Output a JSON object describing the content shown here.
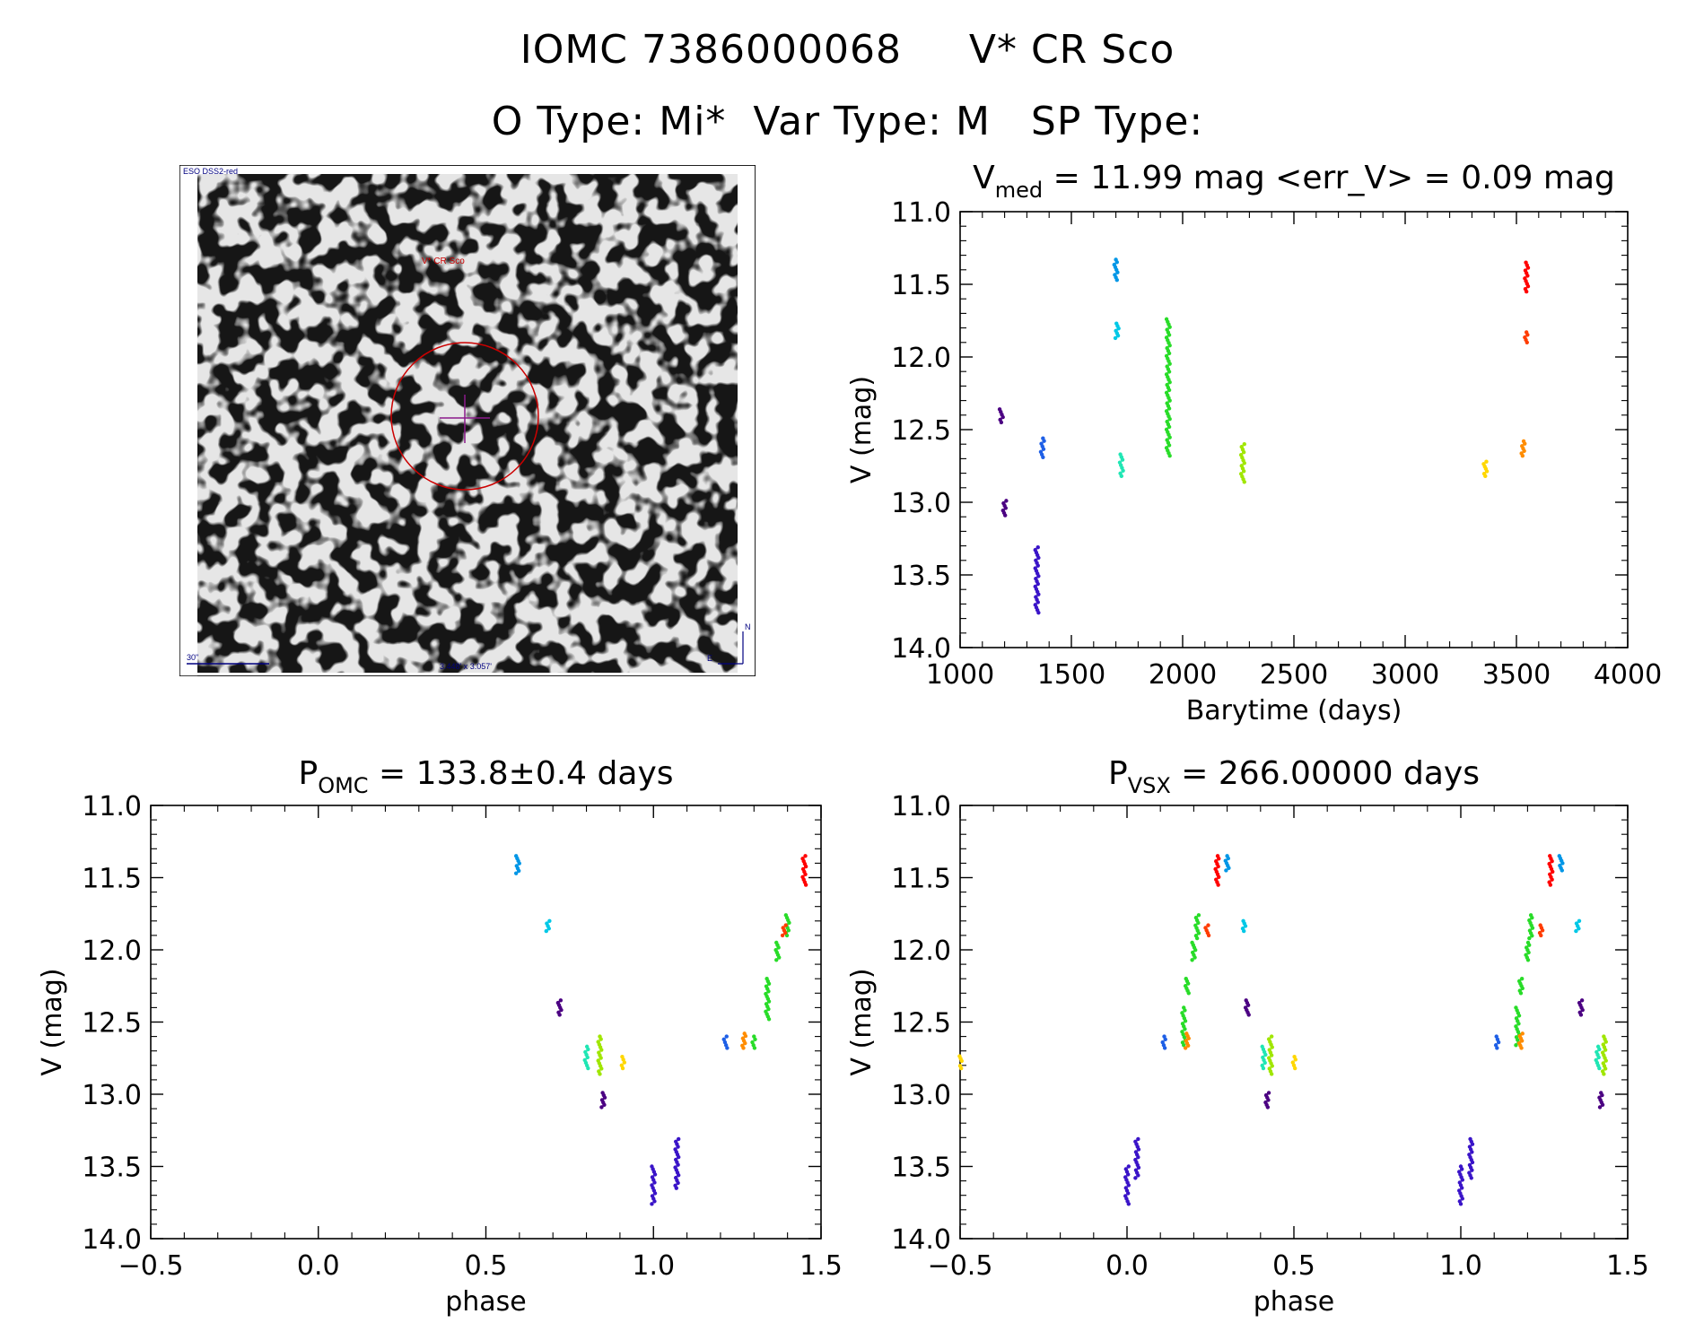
{
  "figure": {
    "title_line1": "IOMC 7386000068     V* CR Sco",
    "title_line2": "O Type: Mi*  Var Type: M   SP Type:"
  },
  "finder_chart": {
    "survey_label": "ESO DSS2-red",
    "object_label": "V* CR Sco",
    "scale_label": "30\"",
    "fov_label": "3.448' x 3.057'",
    "north_label": "N",
    "east_label": "E"
  },
  "colors": {
    "axis": "#000000",
    "circle": "#cc0000",
    "crosshair": "#8b1a8b",
    "annotation": "#000080"
  },
  "chart_data": [
    {
      "id": "lightcurve",
      "type": "scatter",
      "title_main": "V",
      "title_sub": "med",
      "title_rest": " = 11.99 mag <err_V> = 0.09 mag",
      "xlabel": "Barytime (days)",
      "ylabel": "V (mag)",
      "xlim": [
        1000,
        4000
      ],
      "ylim": [
        14.0,
        11.0
      ],
      "y_inverted": true,
      "xticks": [
        1000,
        1500,
        2000,
        2500,
        3000,
        3500,
        4000
      ],
      "yticks": [
        11.0,
        11.5,
        12.0,
        12.5,
        13.0,
        13.5,
        14.0
      ],
      "groups": [
        {
          "color": "#4b0082",
          "x": 1185,
          "y": [
            12.36,
            12.45
          ]
        },
        {
          "color": "#4b0082",
          "x": 1200,
          "y": [
            12.99,
            13.09
          ]
        },
        {
          "color": "#3a14c8",
          "x": 1345,
          "y": [
            13.31,
            13.76
          ]
        },
        {
          "color": "#1e5fe6",
          "x": 1370,
          "y": [
            12.56,
            12.69
          ]
        },
        {
          "color": "#0096e6",
          "x": 1700,
          "y": [
            11.33,
            11.47
          ]
        },
        {
          "color": "#00c8e6",
          "x": 1705,
          "y": [
            11.77,
            11.87
          ]
        },
        {
          "color": "#20e6b4",
          "x": 1725,
          "y": [
            12.67,
            12.82
          ]
        },
        {
          "color": "#28dc28",
          "x": 1935,
          "y": [
            11.74,
            12.68
          ]
        },
        {
          "color": "#a0e600",
          "x": 2270,
          "y": [
            12.6,
            12.86
          ]
        },
        {
          "color": "#ffd700",
          "x": 3360,
          "y": [
            12.72,
            12.82
          ]
        },
        {
          "color": "#ff8c00",
          "x": 3530,
          "y": [
            12.58,
            12.68
          ]
        },
        {
          "color": "#ff3c00",
          "x": 3545,
          "y": [
            11.83,
            11.9
          ]
        },
        {
          "color": "#ff0000",
          "x": 3545,
          "y": [
            11.35,
            11.55
          ]
        }
      ]
    },
    {
      "id": "phase_omc",
      "type": "scatter",
      "title_main": "P",
      "title_sub": "OMC",
      "title_rest": " = 133.8±0.4 days",
      "xlabel": "phase",
      "ylabel": "V (mag)",
      "xlim": [
        -0.5,
        1.5
      ],
      "ylim": [
        14.0,
        11.0
      ],
      "y_inverted": true,
      "xticks": [
        -0.5,
        0.0,
        0.5,
        1.0,
        1.5
      ],
      "xtick_labels": [
        "−0.5",
        "0.0",
        "0.5",
        "1.0",
        "1.5"
      ],
      "yticks": [
        11.0,
        11.5,
        12.0,
        12.5,
        13.0,
        13.5,
        14.0
      ],
      "groups": [
        {
          "color": "#0096e6",
          "x": 0.595,
          "y": [
            11.35,
            11.47
          ]
        },
        {
          "color": "#00c8e6",
          "x": 0.685,
          "y": [
            11.8,
            11.87
          ]
        },
        {
          "color": "#4b0082",
          "x": 0.72,
          "y": [
            12.35,
            12.45
          ]
        },
        {
          "color": "#20e6b4",
          "x": 0.8,
          "y": [
            12.67,
            12.82
          ]
        },
        {
          "color": "#a0e600",
          "x": 0.84,
          "y": [
            12.6,
            12.86
          ]
        },
        {
          "color": "#4b0082",
          "x": 0.85,
          "y": [
            12.99,
            13.09
          ]
        },
        {
          "color": "#ffd700",
          "x": 0.91,
          "y": [
            12.74,
            12.82
          ]
        },
        {
          "color": "#3a14c8",
          "x": 1.0,
          "y": [
            13.5,
            13.76
          ]
        },
        {
          "color": "#3a14c8",
          "x": 1.07,
          "y": [
            13.31,
            13.65
          ]
        },
        {
          "color": "#1e5fe6",
          "x": 1.215,
          "y": [
            12.6,
            12.68
          ]
        },
        {
          "color": "#ff8c00",
          "x": 1.27,
          "y": [
            12.58,
            12.68
          ]
        },
        {
          "color": "#28dc28",
          "x": 1.3,
          "y": [
            12.6,
            12.68
          ]
        },
        {
          "color": "#28dc28",
          "x": 1.34,
          "y": [
            12.2,
            12.48
          ]
        },
        {
          "color": "#28dc28",
          "x": 1.37,
          "y": [
            11.95,
            12.07
          ]
        },
        {
          "color": "#28dc28",
          "x": 1.4,
          "y": [
            11.76,
            11.9
          ]
        },
        {
          "color": "#ff3c00",
          "x": 1.39,
          "y": [
            11.83,
            11.9
          ]
        },
        {
          "color": "#ff0000",
          "x": 1.45,
          "y": [
            11.35,
            11.55
          ]
        }
      ]
    },
    {
      "id": "phase_vsx",
      "type": "scatter",
      "title_main": "P",
      "title_sub": "VSX",
      "title_rest": " = 266.00000 days",
      "xlabel": "phase",
      "ylabel": "V (mag)",
      "xlim": [
        -0.5,
        1.5
      ],
      "ylim": [
        14.0,
        11.0
      ],
      "y_inverted": true,
      "xticks": [
        -0.5,
        0.0,
        0.5,
        1.0,
        1.5
      ],
      "xtick_labels": [
        "−0.5",
        "0.0",
        "0.5",
        "1.0",
        "1.5"
      ],
      "yticks": [
        11.0,
        11.5,
        12.0,
        12.5,
        13.0,
        13.5,
        14.0
      ],
      "groups": [
        {
          "color": "#ffd700",
          "x": -0.5,
          "y": [
            12.72,
            12.82
          ]
        },
        {
          "color": "#3a14c8",
          "x": 0.0,
          "y": [
            13.5,
            13.76
          ]
        },
        {
          "color": "#3a14c8",
          "x": 0.03,
          "y": [
            13.31,
            13.58
          ]
        },
        {
          "color": "#1e5fe6",
          "x": 0.11,
          "y": [
            12.6,
            12.68
          ]
        },
        {
          "color": "#28dc28",
          "x": 0.17,
          "y": [
            12.4,
            12.66
          ]
        },
        {
          "color": "#ff8c00",
          "x": 0.18,
          "y": [
            12.58,
            12.68
          ]
        },
        {
          "color": "#28dc28",
          "x": 0.18,
          "y": [
            12.2,
            12.3
          ]
        },
        {
          "color": "#28dc28",
          "x": 0.2,
          "y": [
            11.95,
            12.07
          ]
        },
        {
          "color": "#28dc28",
          "x": 0.21,
          "y": [
            11.76,
            11.92
          ]
        },
        {
          "color": "#ff3c00",
          "x": 0.24,
          "y": [
            11.83,
            11.9
          ]
        },
        {
          "color": "#ff0000",
          "x": 0.27,
          "y": [
            11.35,
            11.55
          ]
        },
        {
          "color": "#0096e6",
          "x": 0.3,
          "y": [
            11.35,
            11.45
          ]
        },
        {
          "color": "#00c8e6",
          "x": 0.35,
          "y": [
            11.8,
            11.87
          ]
        },
        {
          "color": "#4b0082",
          "x": 0.36,
          "y": [
            12.35,
            12.45
          ]
        },
        {
          "color": "#20e6b4",
          "x": 0.41,
          "y": [
            12.67,
            12.82
          ]
        },
        {
          "color": "#4b0082",
          "x": 0.42,
          "y": [
            12.99,
            13.09
          ]
        },
        {
          "color": "#a0e600",
          "x": 0.43,
          "y": [
            12.6,
            12.86
          ]
        },
        {
          "color": "#ffd700",
          "x": 0.5,
          "y": [
            12.74,
            12.82
          ]
        },
        {
          "color": "#3a14c8",
          "x": 1.0,
          "y": [
            13.5,
            13.76
          ]
        },
        {
          "color": "#3a14c8",
          "x": 1.03,
          "y": [
            13.31,
            13.58
          ]
        },
        {
          "color": "#1e5fe6",
          "x": 1.11,
          "y": [
            12.6,
            12.68
          ]
        },
        {
          "color": "#28dc28",
          "x": 1.17,
          "y": [
            12.4,
            12.66
          ]
        },
        {
          "color": "#ff8c00",
          "x": 1.18,
          "y": [
            12.58,
            12.68
          ]
        },
        {
          "color": "#28dc28",
          "x": 1.18,
          "y": [
            12.2,
            12.3
          ]
        },
        {
          "color": "#28dc28",
          "x": 1.2,
          "y": [
            11.95,
            12.07
          ]
        },
        {
          "color": "#28dc28",
          "x": 1.21,
          "y": [
            11.76,
            11.92
          ]
        },
        {
          "color": "#ff3c00",
          "x": 1.24,
          "y": [
            11.83,
            11.9
          ]
        },
        {
          "color": "#ff0000",
          "x": 1.27,
          "y": [
            11.35,
            11.55
          ]
        },
        {
          "color": "#0096e6",
          "x": 1.3,
          "y": [
            11.35,
            11.45
          ]
        },
        {
          "color": "#00c8e6",
          "x": 1.35,
          "y": [
            11.8,
            11.87
          ]
        },
        {
          "color": "#4b0082",
          "x": 1.36,
          "y": [
            12.35,
            12.45
          ]
        },
        {
          "color": "#20e6b4",
          "x": 1.41,
          "y": [
            12.67,
            12.82
          ]
        },
        {
          "color": "#4b0082",
          "x": 1.42,
          "y": [
            12.99,
            13.09
          ]
        },
        {
          "color": "#a0e600",
          "x": 1.43,
          "y": [
            12.6,
            12.86
          ]
        }
      ]
    }
  ]
}
